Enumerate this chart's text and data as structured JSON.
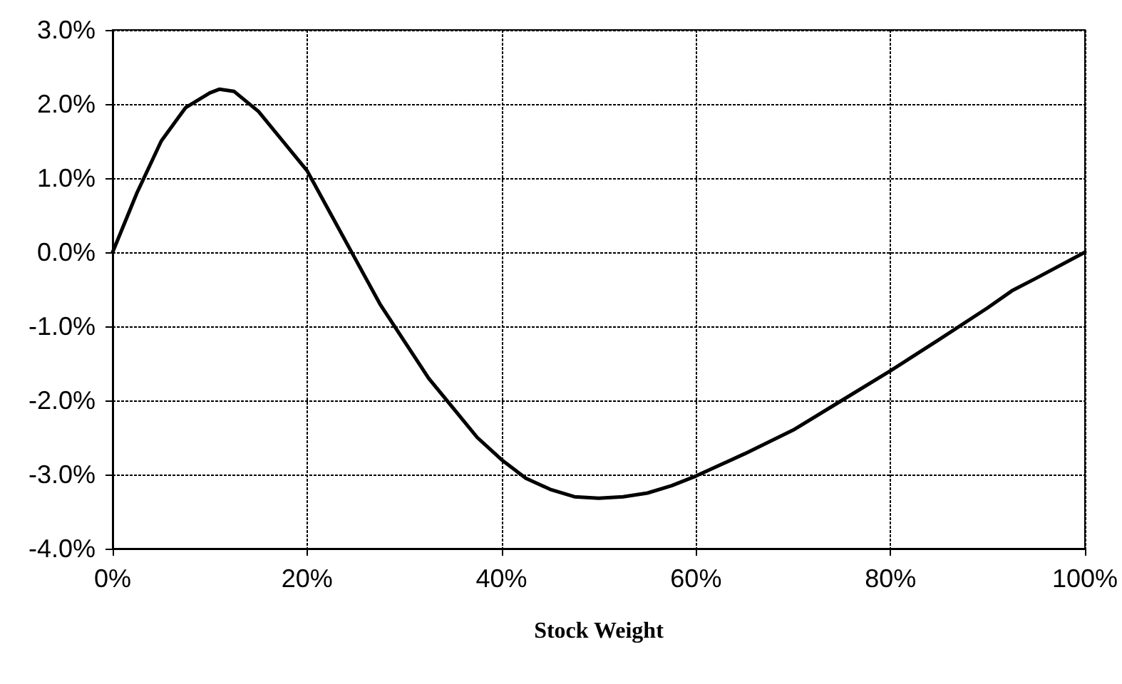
{
  "chart_data": {
    "type": "line",
    "xlabel": "Stock Weight",
    "x": [
      0,
      2.5,
      5,
      7.5,
      10,
      11,
      12.5,
      15,
      17.5,
      20,
      22.5,
      25,
      27.5,
      30,
      32.5,
      35,
      37.5,
      40,
      42.5,
      45,
      47.5,
      50,
      52.5,
      55,
      57.5,
      60,
      65,
      70,
      75,
      80,
      85,
      90,
      92.5,
      95,
      100
    ],
    "series": [
      {
        "color": "#000000",
        "values": [
          0,
          0.8,
          1.5,
          1.95,
          2.15,
          2.2,
          2.17,
          1.9,
          1.5,
          1.1,
          0.5,
          -0.1,
          -0.7,
          -1.2,
          -1.7,
          -2.1,
          -2.5,
          -2.8,
          -3.05,
          -3.2,
          -3.3,
          -3.32,
          -3.3,
          -3.25,
          -3.15,
          -3.02,
          -2.72,
          -2.4,
          -2.0,
          -1.6,
          -1.18,
          -0.75,
          -0.52,
          -0.35,
          0
        ]
      }
    ],
    "xlim": [
      0,
      100
    ],
    "xticks": [
      {
        "value": 0,
        "label": "0%"
      },
      {
        "value": 20,
        "label": "20%"
      },
      {
        "value": 40,
        "label": "40%"
      },
      {
        "value": 60,
        "label": "60%"
      },
      {
        "value": 80,
        "label": "80%"
      },
      {
        "value": 100,
        "label": "100%"
      }
    ],
    "ylim": [
      -4,
      3
    ],
    "yticks": [
      {
        "value": -4,
        "label": "-4.0%"
      },
      {
        "value": -3,
        "label": "-3.0%"
      },
      {
        "value": -2,
        "label": "-2.0%"
      },
      {
        "value": -1,
        "label": "-1.0%"
      },
      {
        "value": 0,
        "label": "0.0%"
      },
      {
        "value": 1,
        "label": "1.0%"
      },
      {
        "value": 2,
        "label": "2.0%"
      },
      {
        "value": 3,
        "label": "3.0%"
      }
    ],
    "grid": true,
    "marker": "none",
    "line_style": "solid"
  }
}
